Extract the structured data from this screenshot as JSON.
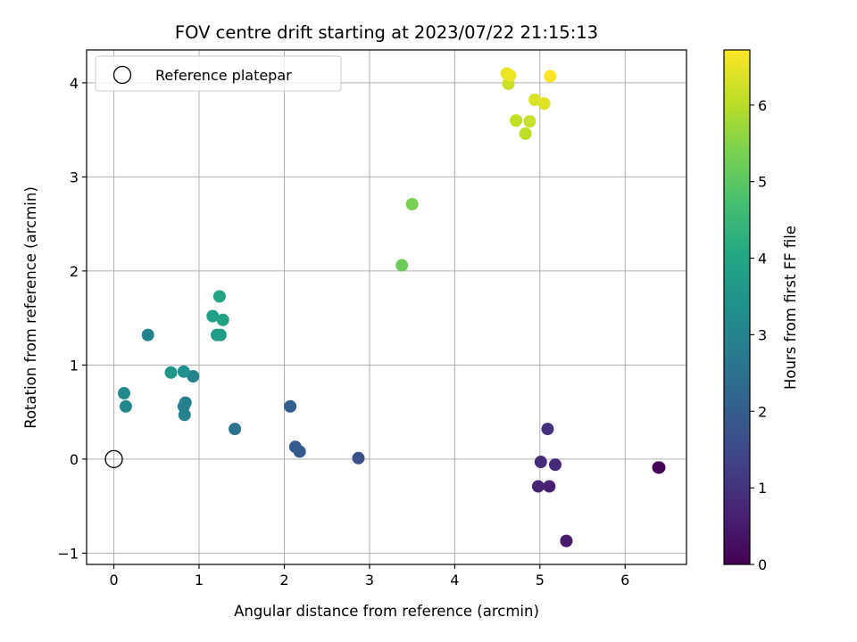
{
  "chart_data": {
    "type": "scatter",
    "title": "FOV centre drift starting at 2023/07/22 21:15:13",
    "xlabel": "Angular distance from reference (arcmin)",
    "ylabel": "Rotation from reference (arcmin)",
    "xlim": [
      -0.32,
      6.72
    ],
    "ylim": [
      -1.12,
      4.35
    ],
    "xticks": [
      0,
      1,
      2,
      3,
      4,
      5,
      6
    ],
    "yticks": [
      -1,
      0,
      1,
      2,
      3,
      4
    ],
    "grid": true,
    "legend": {
      "location": "upper-left",
      "entries": [
        "Reference platepar"
      ]
    },
    "reference_point": {
      "x": 0,
      "y": 0,
      "marker": "open-circle"
    },
    "colorbar": {
      "label": "Hours from first FF file",
      "colormap": "viridis",
      "range": [
        0,
        6.72
      ],
      "ticks": [
        0,
        1,
        2,
        3,
        4,
        5,
        6
      ]
    },
    "points": [
      {
        "x": 6.39,
        "y": -0.09,
        "c": 0.0
      },
      {
        "x": 6.4,
        "y": -0.09,
        "c": 0.05
      },
      {
        "x": 5.31,
        "y": -0.87,
        "c": 0.5
      },
      {
        "x": 5.11,
        "y": -0.29,
        "c": 0.6
      },
      {
        "x": 4.98,
        "y": -0.29,
        "c": 0.7
      },
      {
        "x": 5.18,
        "y": -0.06,
        "c": 0.8
      },
      {
        "x": 5.01,
        "y": -0.03,
        "c": 0.85
      },
      {
        "x": 5.09,
        "y": 0.32,
        "c": 0.95
      },
      {
        "x": 2.87,
        "y": 0.01,
        "c": 1.7
      },
      {
        "x": 2.18,
        "y": 0.08,
        "c": 1.9
      },
      {
        "x": 2.13,
        "y": 0.13,
        "c": 2.0
      },
      {
        "x": 2.07,
        "y": 0.56,
        "c": 2.05
      },
      {
        "x": 1.42,
        "y": 0.32,
        "c": 2.5
      },
      {
        "x": 0.84,
        "y": 0.6,
        "c": 2.85
      },
      {
        "x": 0.82,
        "y": 0.56,
        "c": 2.9
      },
      {
        "x": 0.83,
        "y": 0.47,
        "c": 2.9
      },
      {
        "x": 0.93,
        "y": 0.88,
        "c": 3.0
      },
      {
        "x": 0.4,
        "y": 1.32,
        "c": 3.0
      },
      {
        "x": 0.14,
        "y": 0.56,
        "c": 3.1
      },
      {
        "x": 0.12,
        "y": 0.7,
        "c": 3.15
      },
      {
        "x": 0.82,
        "y": 0.93,
        "c": 3.4
      },
      {
        "x": 0.67,
        "y": 0.92,
        "c": 3.5
      },
      {
        "x": 1.21,
        "y": 1.32,
        "c": 3.7
      },
      {
        "x": 1.25,
        "y": 1.32,
        "c": 3.75
      },
      {
        "x": 1.16,
        "y": 1.52,
        "c": 3.8
      },
      {
        "x": 1.28,
        "y": 1.48,
        "c": 3.85
      },
      {
        "x": 1.24,
        "y": 1.73,
        "c": 3.95
      },
      {
        "x": 3.38,
        "y": 2.06,
        "c": 5.2
      },
      {
        "x": 3.5,
        "y": 2.71,
        "c": 5.35
      },
      {
        "x": 4.83,
        "y": 3.46,
        "c": 6.05
      },
      {
        "x": 4.72,
        "y": 3.6,
        "c": 6.1
      },
      {
        "x": 4.88,
        "y": 3.59,
        "c": 6.15
      },
      {
        "x": 4.63,
        "y": 3.99,
        "c": 6.2
      },
      {
        "x": 4.94,
        "y": 3.82,
        "c": 6.35
      },
      {
        "x": 5.05,
        "y": 3.78,
        "c": 6.4
      },
      {
        "x": 4.61,
        "y": 4.1,
        "c": 6.5
      },
      {
        "x": 4.65,
        "y": 4.08,
        "c": 6.55
      },
      {
        "x": 5.12,
        "y": 4.07,
        "c": 6.72
      }
    ]
  }
}
